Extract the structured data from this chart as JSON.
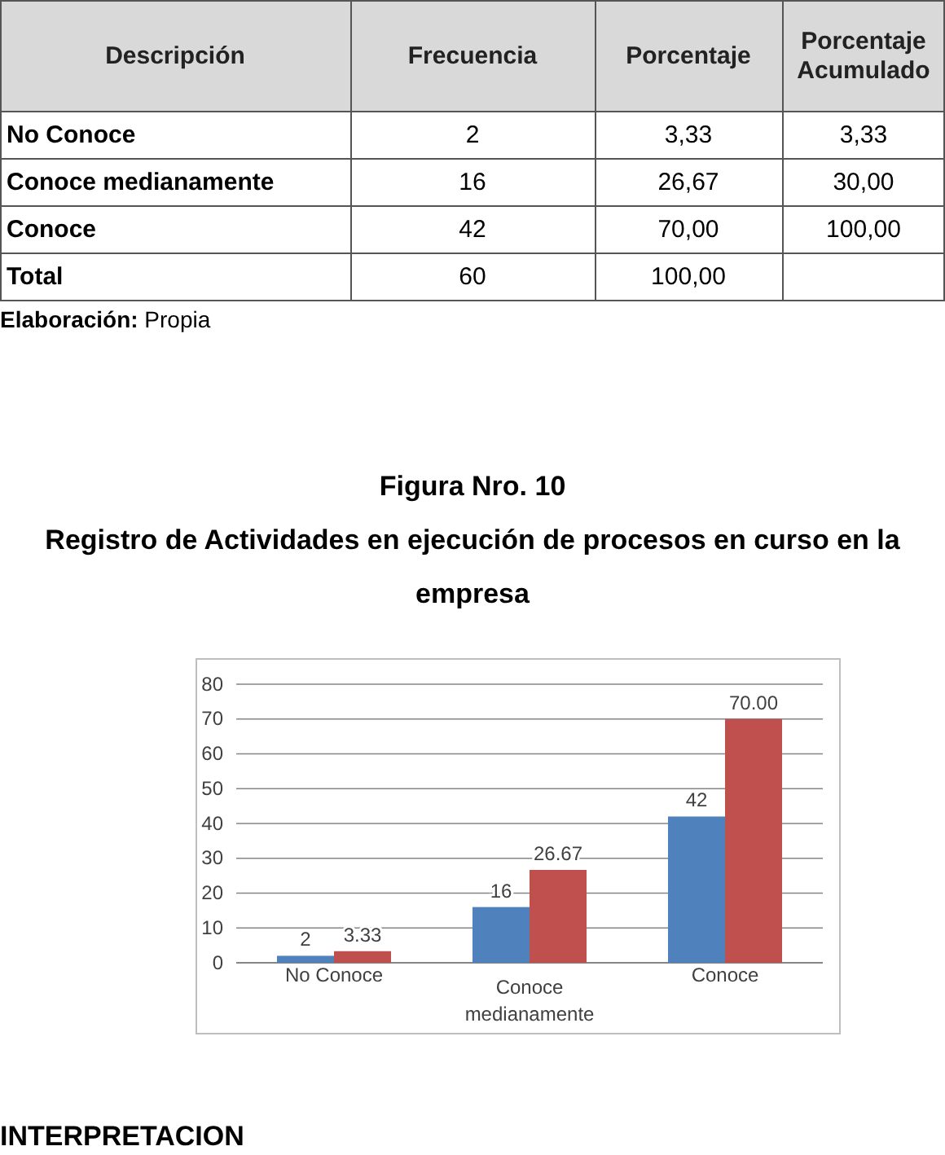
{
  "chart_data": [
    {
      "type": "other",
      "annotations": [
        "Descripción",
        "Frecuencia",
        "Porcentaje",
        "Porcentaje Acumulado",
        "No Conoce",
        "2",
        "3,33",
        "3,33",
        "Conoce medianamente",
        "16",
        "26,67",
        "30,00",
        "Conoce",
        "42",
        "70,00",
        "100,00",
        "Total",
        "60",
        "100,00",
        "Elaboración: Propia"
      ]
    },
    {
      "type": "bar",
      "title": "Figura Nro.  10",
      "subtitle": "Registro de Actividades en ejecución de procesos en curso  en la empresa",
      "categories": [
        "No Conoce",
        "Conoce medianamente",
        "Conoce"
      ],
      "series": [
        {
          "color": "#4f81bd",
          "values": [
            2,
            16,
            42
          ],
          "value_labels": [
            "2",
            "16",
            "42"
          ]
        },
        {
          "color": "#c0504d",
          "values": [
            3.33,
            26.67,
            70.0
          ],
          "value_labels": [
            "3.33",
            "26.67",
            "70.00"
          ]
        }
      ],
      "ylim": [
        0,
        80
      ],
      "yticks": [
        0,
        10,
        20,
        30,
        40,
        50,
        60,
        70,
        80
      ],
      "grid": "y",
      "annotations": [
        "INTERPRETACION"
      ]
    }
  ]
}
